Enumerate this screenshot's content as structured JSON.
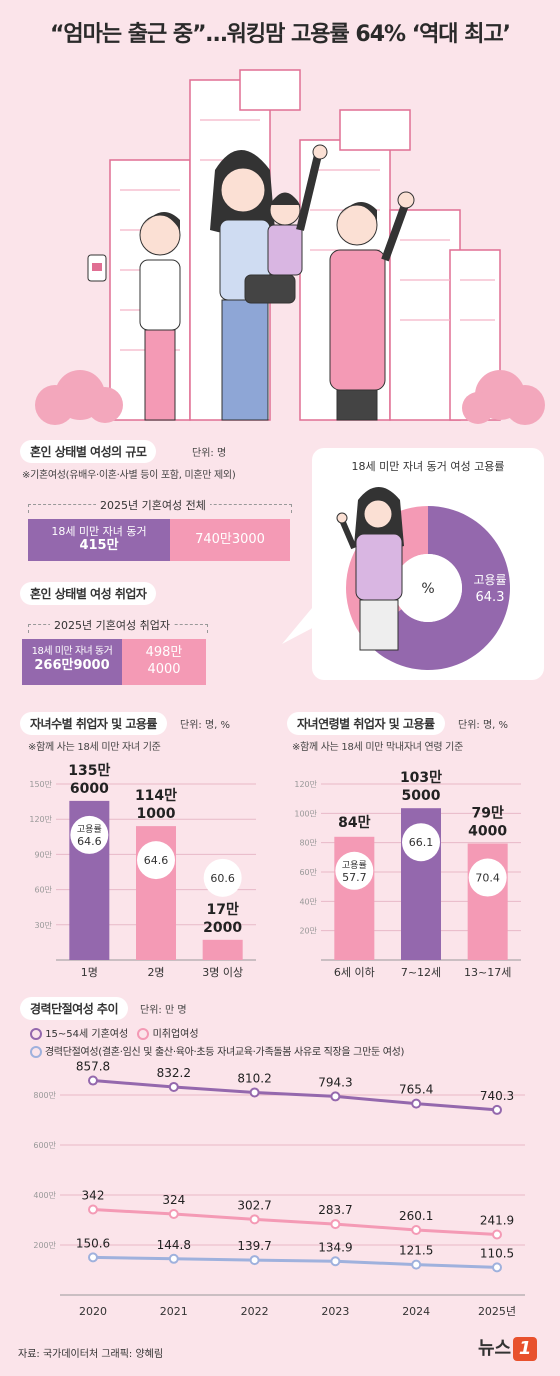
{
  "title": "“엄마는 출근 중”…워킹맘 고용률 64% ‘역대 최고’",
  "section1": {
    "title": "혼인 상태별 여성의 규모",
    "unit": "단위: 명",
    "note": "※기혼여성(유배우·이혼·사별 등이 포함, 미혼만 제외)",
    "bracket_label": "2025년 기혼여성 전체",
    "with_children_label": "18세 미만 자녀 동거",
    "with_children_value": "415만",
    "total_value": "740만3000"
  },
  "section2": {
    "title": "혼인 상태별 여성 취업자",
    "bracket_label": "2025년 기혼여성 취업자",
    "with_children_label": "18세 미만 자녀 동거",
    "with_children_value": "266만9000",
    "total_value_line1": "498만",
    "total_value_line2": "4000"
  },
  "donut": {
    "title": "18세 미만 자녀 동거 여성 고용률",
    "center": "%",
    "label": "고용률",
    "value": 64.3,
    "value_text": "64.3"
  },
  "section3": {
    "title": "자녀수별 취업자 및 고용률",
    "unit": "단위: 명, %",
    "note": "※함께 사는 18세 미만 자녀 기준"
  },
  "section4": {
    "title": "자녀연령별 취업자 및 고용률",
    "unit": "단위: 명, %",
    "note": "※함께 사는 18세 미만 막내자녀 연령 기준"
  },
  "section5": {
    "title": "경력단절여성 추이",
    "unit": "단위: 만 명",
    "legend1": "15~54세 기혼여성",
    "legend2": "미취업여성",
    "legend3": "경력단절여성(결혼·임신 및 출산·육아·초등 자녀교육·가족돌봄 사유로 직장을 그만둔 여성)"
  },
  "footer": {
    "source": "자료: 국가데이터처   그래픽: 양혜림",
    "logo_text": "뉴스",
    "logo_mark": "1"
  },
  "chart_data": [
    {
      "type": "bar",
      "name_key": "children-count",
      "categories": [
        "1명",
        "2명",
        "3명 이상"
      ],
      "values": [
        135.6,
        114.1,
        17.2
      ],
      "value_labels_line1": [
        "135만",
        "114만",
        "17만"
      ],
      "value_labels_line2": [
        "6000",
        "1000",
        "2000"
      ],
      "rates": [
        "64.6",
        "64.6",
        "60.6"
      ],
      "rate_label": "고용률",
      "yticks": [
        30,
        60,
        90,
        120,
        150
      ],
      "ytick_labels": [
        "30만",
        "60만",
        "90만",
        "120만",
        "150만"
      ],
      "ylim": [
        0,
        150
      ],
      "colors": [
        "#9468ad",
        "#f49ab5",
        "#f49ab5"
      ]
    },
    {
      "type": "bar",
      "name_key": "children-age",
      "categories": [
        "6세 이하",
        "7~12세",
        "13~17세"
      ],
      "values": [
        84,
        103.5,
        79.4
      ],
      "value_labels_line1": [
        "84만",
        "103만",
        "79만"
      ],
      "value_labels_line2": [
        "",
        "5000",
        "4000"
      ],
      "rates": [
        "57.7",
        "66.1",
        "70.4"
      ],
      "rate_label": "고용률",
      "yticks": [
        20,
        40,
        60,
        80,
        100,
        120
      ],
      "ytick_labels": [
        "20만",
        "40만",
        "60만",
        "80만",
        "100만",
        "120만"
      ],
      "ylim": [
        0,
        120
      ],
      "colors": [
        "#f49ab5",
        "#9468ad",
        "#f49ab5"
      ]
    },
    {
      "type": "line",
      "x": [
        "2020",
        "2021",
        "2022",
        "2023",
        "2024",
        "2025년"
      ],
      "series": [
        {
          "name": "15~54세 기혼여성",
          "values": [
            857.8,
            832.2,
            810.2,
            794.3,
            765.4,
            740.3
          ],
          "labels": [
            "857.8",
            "832.2",
            "810.2",
            "794.3",
            "765.4",
            "740.3"
          ],
          "color": "#9468ad"
        },
        {
          "name": "미취업여성",
          "values": [
            342,
            324,
            302.7,
            283.7,
            260.1,
            241.9
          ],
          "labels": [
            "342",
            "324",
            "302.7",
            "283.7",
            "260.1",
            "241.9"
          ],
          "color": "#f49ab5"
        },
        {
          "name": "경력단절여성",
          "values": [
            150.6,
            144.8,
            139.7,
            134.9,
            121.5,
            110.5
          ],
          "labels": [
            "150.6",
            "144.8",
            "139.7",
            "134.9",
            "121.5",
            "110.5"
          ],
          "color": "#9fb1dd"
        }
      ],
      "yticks": [
        200,
        400,
        600,
        800
      ],
      "ytick_labels": [
        "200만",
        "400만",
        "600만",
        "800만"
      ],
      "ylim": [
        0,
        900
      ]
    }
  ]
}
